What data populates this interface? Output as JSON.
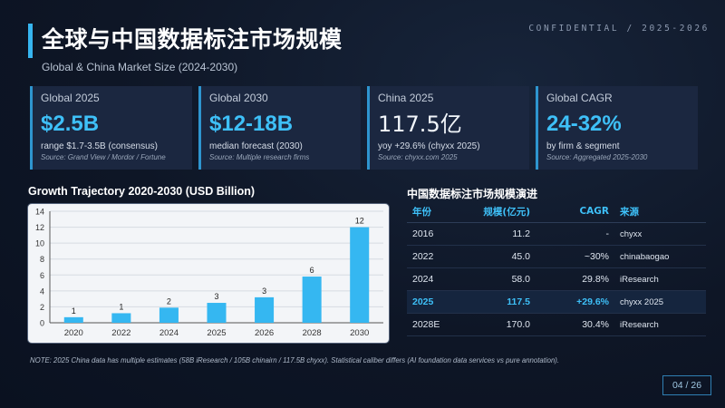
{
  "header": {
    "title": "全球与中国数据标注市场规模",
    "subtitle": "Global & China Market Size (2024-2030)",
    "confidential": "CONFIDENTIAL / 2025-2026"
  },
  "kpis": [
    {
      "label": "Global 2025",
      "value": "$2.5B",
      "note": "range $1.7-3.5B (consensus)",
      "source": "Source: Grand View / Mordor / Fortune"
    },
    {
      "label": "Global 2030",
      "value": "$12-18B",
      "note": "median forecast (2030)",
      "source": "Source: Multiple research firms"
    },
    {
      "label": "China 2025",
      "value": "117.5亿",
      "note": "yoy +29.6% (chyxx 2025)",
      "source": "Source: chyxx.com 2025"
    },
    {
      "label": "Global CAGR",
      "value": "24-32%",
      "note": "by firm & segment",
      "source": "Source: Aggregated 2025-2030"
    }
  ],
  "chart_title": "Growth Trajectory 2020-2030 (USD Billion)",
  "chart_data": {
    "type": "bar",
    "title": "Growth Trajectory 2020-2030 (USD Billion)",
    "xlabel": "",
    "ylabel": "",
    "categories": [
      "2020",
      "2022",
      "2024",
      "2025",
      "2026",
      "2028",
      "2030"
    ],
    "values": [
      0.7,
      1.2,
      1.9,
      2.5,
      3.2,
      5.8,
      12.0
    ],
    "data_labels": [
      "1",
      "1",
      "2",
      "3",
      "3",
      "6",
      "12"
    ],
    "ylim": [
      0,
      14
    ],
    "yticks": [
      0,
      2,
      4,
      6,
      8,
      10,
      12,
      14
    ],
    "grid": true,
    "bar_color": "#35b7f1"
  },
  "table": {
    "title": "中国数据标注市场规模演进",
    "headers": [
      "年份",
      "规模(亿元)",
      "CAGR",
      "来源"
    ],
    "rows": [
      [
        "2016",
        "11.2",
        "-",
        "chyxx"
      ],
      [
        "2022",
        "45.0",
        "~30%",
        "chinabaogao"
      ],
      [
        "2024",
        "58.0",
        "29.8%",
        "iResearch"
      ],
      [
        "2025",
        "117.5",
        "+29.6%",
        "chyxx 2025"
      ],
      [
        "2028E",
        "170.0",
        "30.4%",
        "iResearch"
      ]
    ],
    "highlight_row": 3
  },
  "note": "NOTE: 2025 China data has multiple estimates (58B iResearch / 105B chinairn / 117.5B chyxx). Statistical caliber differs (AI foundation data services vs pure annotation).",
  "pager": "04 / 26",
  "colors": {
    "accent": "#36b5f0",
    "background": "#0e1626",
    "card": "#1b2740"
  }
}
